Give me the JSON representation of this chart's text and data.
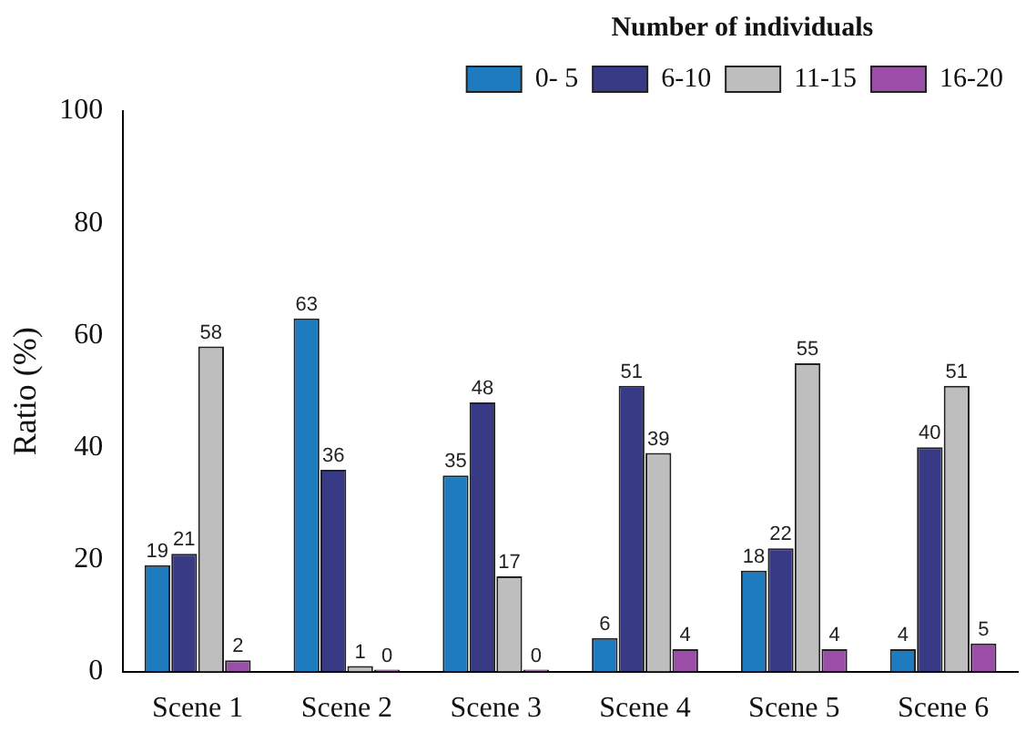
{
  "chart_data": {
    "type": "bar",
    "ylabel": "Ratio (%)",
    "legend_title": "Number of individuals",
    "categories": [
      "Scene 1",
      "Scene 2",
      "Scene 3",
      "Scene 4",
      "Scene 5",
      "Scene 6"
    ],
    "series": [
      {
        "name": "0- 5",
        "color": "#1f7bbf",
        "values": [
          19,
          63,
          35,
          6,
          18,
          4
        ]
      },
      {
        "name": "6-10",
        "color": "#383a86",
        "values": [
          21,
          36,
          48,
          51,
          22,
          40
        ]
      },
      {
        "name": "11-15",
        "color": "#bebebe",
        "values": [
          58,
          1,
          17,
          39,
          55,
          51
        ]
      },
      {
        "name": "16-20",
        "color": "#9b4ea8",
        "values": [
          2,
          0,
          0,
          4,
          4,
          5
        ]
      }
    ],
    "ylim": [
      0,
      100
    ],
    "yticks": [
      0,
      20,
      40,
      60,
      80,
      100
    ],
    "grid": false,
    "legend": "top right",
    "data_labels": true
  }
}
